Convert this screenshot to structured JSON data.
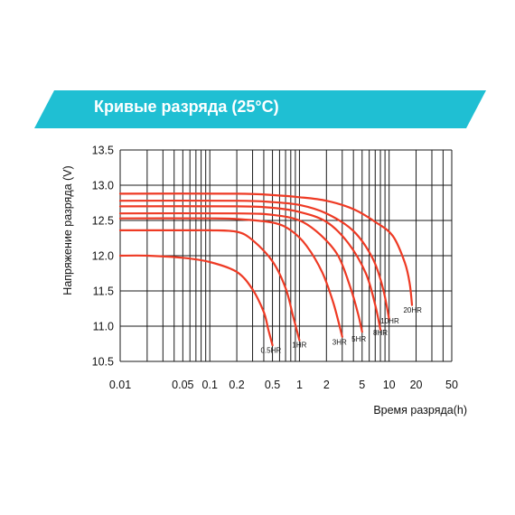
{
  "header": {
    "title": "Кривые разряда (25°C)",
    "banner_color": "#1fbfd3"
  },
  "chart_data": {
    "type": "line",
    "title": "Кривые разряда (25°C)",
    "xlabel": "Время разряда(h)",
    "ylabel": "Напряжение разряда (V)",
    "x_scale": "log",
    "xlim": [
      0.01,
      50
    ],
    "ylim": [
      10.5,
      13.5
    ],
    "grid": true,
    "x_ticks": [
      {
        "value": 0.01,
        "label": "0.01"
      },
      {
        "value": 0.05,
        "label": "0.05"
      },
      {
        "value": 0.1,
        "label": "0.1"
      },
      {
        "value": 0.2,
        "label": "0.2"
      },
      {
        "value": 0.5,
        "label": "0.5"
      },
      {
        "value": 1,
        "label": "1"
      },
      {
        "value": 2,
        "label": "2"
      },
      {
        "value": 5,
        "label": "5"
      },
      {
        "value": 10,
        "label": "10"
      },
      {
        "value": 20,
        "label": "20"
      },
      {
        "value": 50,
        "label": "50"
      }
    ],
    "y_ticks": [
      "10.5",
      "11.0",
      "11.5",
      "12.0",
      "12.5",
      "13.0",
      "13.5"
    ],
    "series": [
      {
        "name": "0.5HR",
        "color": "#ee3a24",
        "points": [
          [
            0.01,
            12.0
          ],
          [
            0.02,
            12.0
          ],
          [
            0.05,
            11.97
          ],
          [
            0.1,
            11.91
          ],
          [
            0.2,
            11.77
          ],
          [
            0.3,
            11.52
          ],
          [
            0.4,
            11.2
          ],
          [
            0.45,
            10.95
          ],
          [
            0.5,
            10.73
          ]
        ]
      },
      {
        "name": "1HR",
        "color": "#ee3a24",
        "points": [
          [
            0.01,
            12.36
          ],
          [
            0.05,
            12.36
          ],
          [
            0.1,
            12.36
          ],
          [
            0.2,
            12.34
          ],
          [
            0.3,
            12.22
          ],
          [
            0.5,
            11.92
          ],
          [
            0.7,
            11.54
          ],
          [
            0.85,
            11.14
          ],
          [
            1.0,
            10.8
          ]
        ]
      },
      {
        "name": "3HR",
        "color": "#ee3a24",
        "points": [
          [
            0.01,
            12.53
          ],
          [
            0.1,
            12.53
          ],
          [
            0.2,
            12.52
          ],
          [
            0.5,
            12.47
          ],
          [
            0.8,
            12.36
          ],
          [
            1.2,
            12.14
          ],
          [
            1.8,
            11.76
          ],
          [
            2.4,
            11.32
          ],
          [
            3.0,
            10.85
          ]
        ]
      },
      {
        "name": "5HR",
        "color": "#ee3a24",
        "points": [
          [
            0.01,
            12.6
          ],
          [
            0.2,
            12.6
          ],
          [
            0.5,
            12.58
          ],
          [
            1.0,
            12.5
          ],
          [
            1.7,
            12.3
          ],
          [
            2.7,
            12.0
          ],
          [
            3.7,
            11.55
          ],
          [
            4.5,
            11.18
          ],
          [
            5.0,
            10.92
          ]
        ]
      },
      {
        "name": "8HR",
        "color": "#ee3a24",
        "points": [
          [
            0.01,
            12.7
          ],
          [
            0.2,
            12.7
          ],
          [
            0.5,
            12.68
          ],
          [
            1.0,
            12.62
          ],
          [
            2.0,
            12.48
          ],
          [
            3.5,
            12.18
          ],
          [
            5.5,
            11.75
          ],
          [
            7.0,
            11.3
          ],
          [
            8.0,
            10.95
          ]
        ]
      },
      {
        "name": "10HR",
        "color": "#ee3a24",
        "points": [
          [
            0.01,
            12.78
          ],
          [
            0.2,
            12.78
          ],
          [
            0.5,
            12.76
          ],
          [
            1.0,
            12.72
          ],
          [
            2.0,
            12.6
          ],
          [
            4.0,
            12.35
          ],
          [
            6.5,
            11.97
          ],
          [
            8.5,
            11.55
          ],
          [
            10.0,
            11.1
          ]
        ]
      },
      {
        "name": "20HR",
        "color": "#ee3a24",
        "points": [
          [
            0.01,
            12.88
          ],
          [
            0.2,
            12.88
          ],
          [
            0.5,
            12.86
          ],
          [
            1.0,
            12.83
          ],
          [
            2.0,
            12.78
          ],
          [
            4.0,
            12.66
          ],
          [
            7.0,
            12.48
          ],
          [
            11.0,
            12.28
          ],
          [
            15.0,
            11.9
          ],
          [
            17.0,
            11.6
          ],
          [
            18.0,
            11.3
          ]
        ]
      }
    ],
    "curve_labels": [
      {
        "text": "0.5HR",
        "x": 0.48,
        "y": 10.62
      },
      {
        "text": "1HR",
        "x": 1.0,
        "y": 10.7
      },
      {
        "text": "3HR",
        "x": 2.8,
        "y": 10.74
      },
      {
        "text": "5HR",
        "x": 4.6,
        "y": 10.78
      },
      {
        "text": "8HR",
        "x": 8.0,
        "y": 10.87
      },
      {
        "text": "10HR",
        "x": 10.2,
        "y": 11.04
      },
      {
        "text": "20HR",
        "x": 18.3,
        "y": 11.19
      }
    ]
  }
}
